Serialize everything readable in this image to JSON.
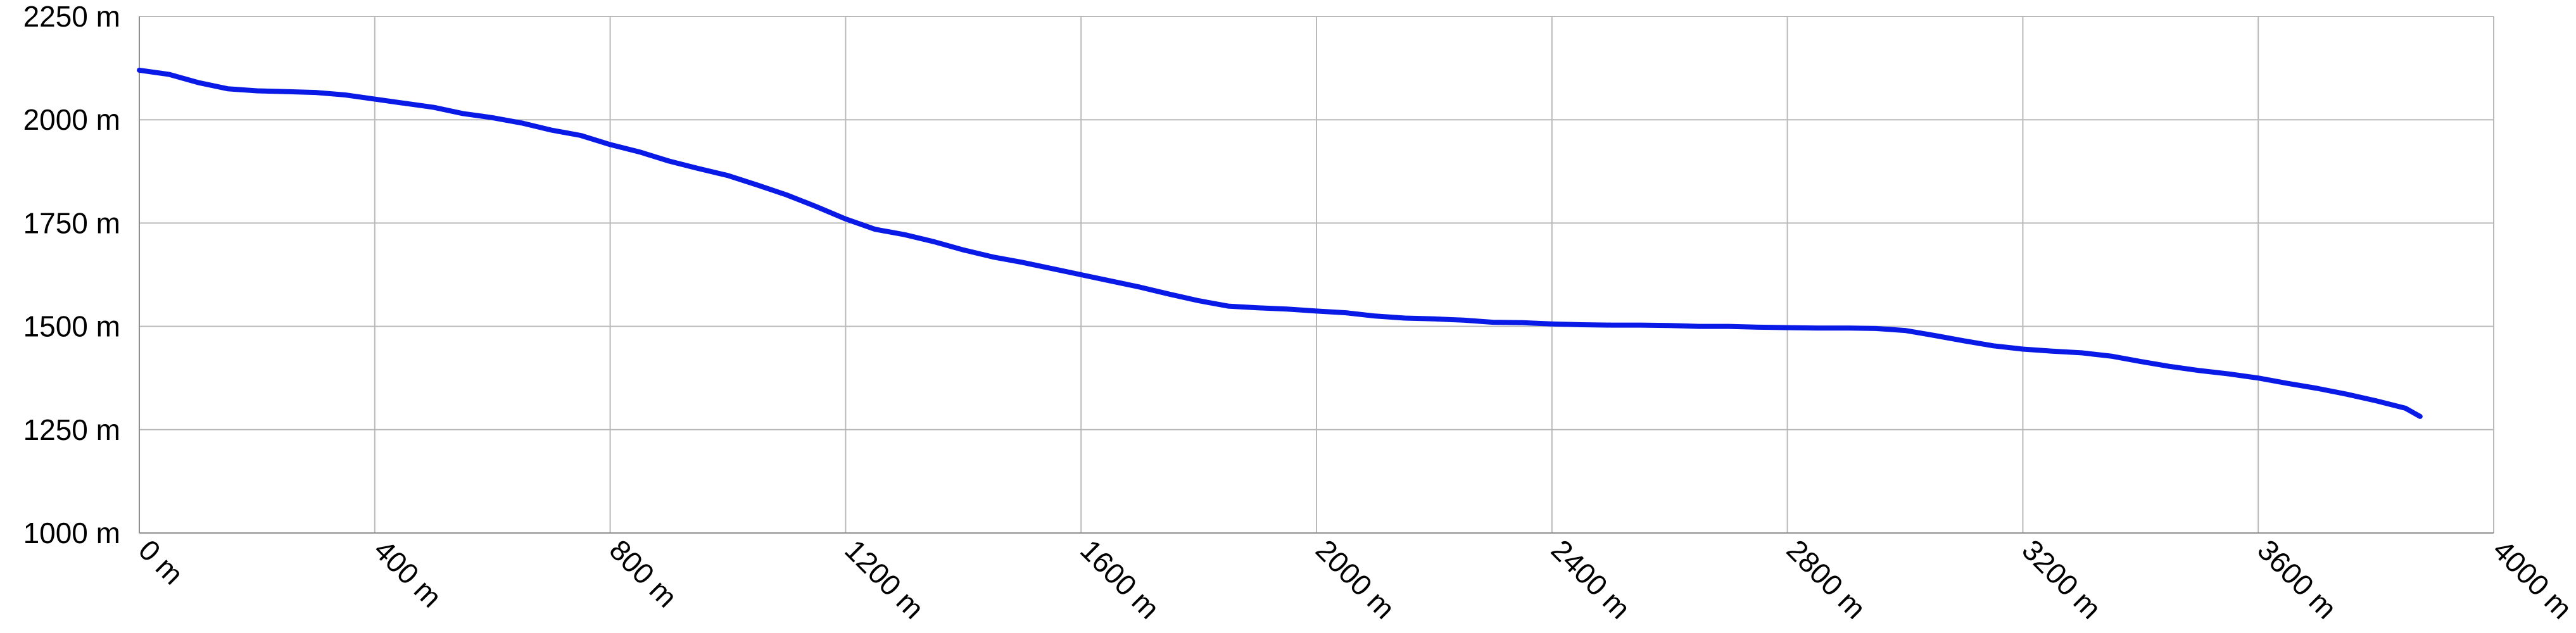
{
  "chart_data": {
    "type": "line",
    "title": "",
    "xlabel": "",
    "ylabel": "",
    "xlim": [
      0,
      4000
    ],
    "ylim": [
      1000,
      2250
    ],
    "grid": true,
    "legend": "none",
    "x_ticks": [
      {
        "value": 0,
        "label": "0 m"
      },
      {
        "value": 400,
        "label": "400 m"
      },
      {
        "value": 800,
        "label": "800 m"
      },
      {
        "value": 1200,
        "label": "1200 m"
      },
      {
        "value": 1600,
        "label": "1600 m"
      },
      {
        "value": 2000,
        "label": "2000 m"
      },
      {
        "value": 2400,
        "label": "2400 m"
      },
      {
        "value": 2800,
        "label": "2800 m"
      },
      {
        "value": 3200,
        "label": "3200 m"
      },
      {
        "value": 3600,
        "label": "3600 m"
      },
      {
        "value": 4000,
        "label": "4000 m"
      }
    ],
    "y_ticks": [
      {
        "value": 1000,
        "label": "1000 m"
      },
      {
        "value": 1250,
        "label": "1250 m"
      },
      {
        "value": 1500,
        "label": "1500 m"
      },
      {
        "value": 1750,
        "label": "1750 m"
      },
      {
        "value": 2000,
        "label": "2000 m"
      },
      {
        "value": 2250,
        "label": "2250 m"
      }
    ],
    "series": [
      {
        "color": "#0a1ae6",
        "x": [
          0,
          50,
          100,
          150,
          200,
          250,
          300,
          350,
          400,
          450,
          500,
          550,
          600,
          650,
          700,
          750,
          800,
          850,
          900,
          950,
          1000,
          1050,
          1100,
          1150,
          1200,
          1250,
          1300,
          1350,
          1400,
          1450,
          1500,
          1550,
          1600,
          1650,
          1700,
          1750,
          1800,
          1850,
          1900,
          1950,
          2000,
          2050,
          2100,
          2150,
          2200,
          2250,
          2300,
          2350,
          2400,
          2450,
          2500,
          2550,
          2600,
          2650,
          2700,
          2750,
          2800,
          2850,
          2900,
          2950,
          3000,
          3050,
          3100,
          3150,
          3200,
          3250,
          3300,
          3350,
          3400,
          3450,
          3500,
          3550,
          3600,
          3650,
          3700,
          3750,
          3800,
          3850,
          3875
        ],
        "y": [
          2120,
          2110,
          2090,
          2075,
          2070,
          2068,
          2066,
          2060,
          2050,
          2040,
          2030,
          2015,
          2005,
          1992,
          1975,
          1962,
          1940,
          1922,
          1900,
          1882,
          1865,
          1842,
          1818,
          1790,
          1760,
          1735,
          1722,
          1705,
          1685,
          1668,
          1655,
          1640,
          1625,
          1610,
          1595,
          1578,
          1562,
          1549,
          1545,
          1542,
          1537,
          1533,
          1525,
          1520,
          1518,
          1515,
          1510,
          1509,
          1506,
          1504,
          1503,
          1503,
          1502,
          1500,
          1500,
          1498,
          1497,
          1496,
          1496,
          1495,
          1490,
          1478,
          1465,
          1453,
          1445,
          1440,
          1436,
          1428,
          1415,
          1403,
          1393,
          1385,
          1375,
          1362,
          1350,
          1336,
          1320,
          1302,
          1282
        ]
      }
    ]
  }
}
